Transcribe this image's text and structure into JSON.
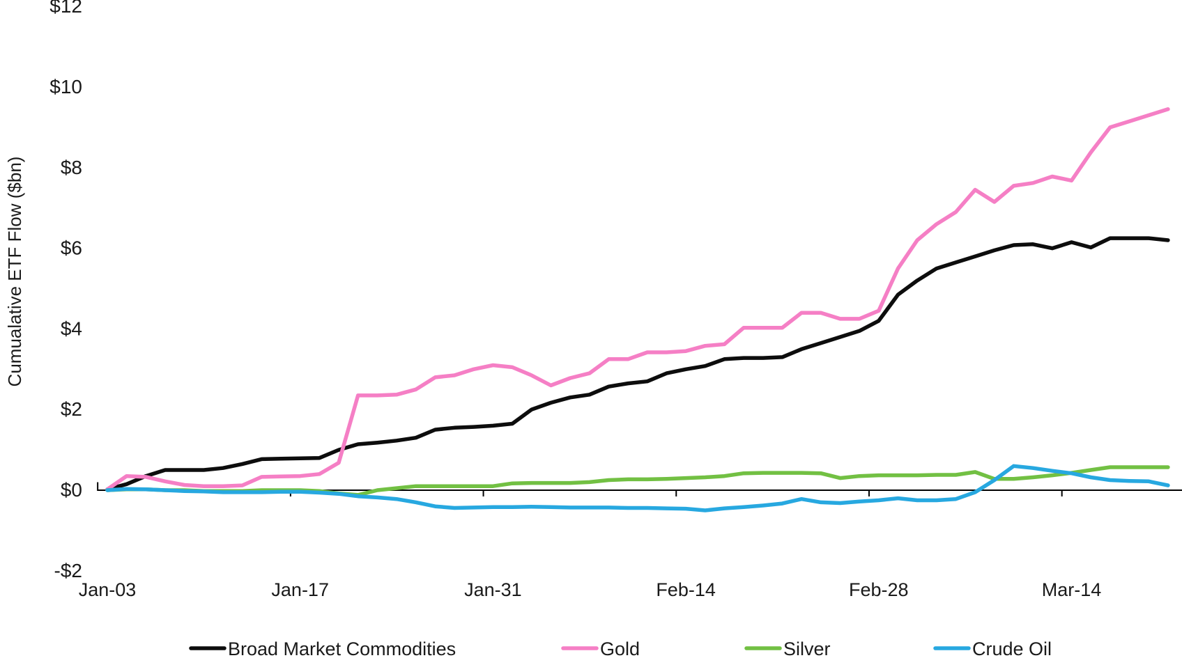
{
  "chart_data": {
    "type": "line",
    "title": "",
    "xlabel": "",
    "ylabel": "Cumualative ETF Flow ($bn)",
    "ylim": [
      -2,
      12
    ],
    "grid": false,
    "legend_position": "bottom",
    "text_color": "#1a1a1a",
    "axis_color": "#000000",
    "yticks": [
      {
        "label": "$12",
        "value": 12
      },
      {
        "label": "$10",
        "value": 10
      },
      {
        "label": "$8",
        "value": 8
      },
      {
        "label": "$6",
        "value": 6
      },
      {
        "label": "$4",
        "value": 4
      },
      {
        "label": "$2",
        "value": 2
      },
      {
        "label": "$0",
        "value": 0
      },
      {
        "label": "-$2",
        "value": -2
      }
    ],
    "xticks": [
      {
        "label": "Jan-03",
        "index": 0
      },
      {
        "label": "Jan-17",
        "index": 10
      },
      {
        "label": "Jan-31",
        "index": 20
      },
      {
        "label": "Feb-14",
        "index": 30
      },
      {
        "label": "Feb-28",
        "index": 40
      },
      {
        "label": "Mar-14",
        "index": 50
      }
    ],
    "x": [
      "Jan-03",
      "Jan-04",
      "Jan-05",
      "Jan-06",
      "Jan-09",
      "Jan-10",
      "Jan-11",
      "Jan-12",
      "Jan-13",
      "Jan-16",
      "Jan-17",
      "Jan-18",
      "Jan-19",
      "Jan-20",
      "Jan-23",
      "Jan-24",
      "Jan-25",
      "Jan-26",
      "Jan-27",
      "Jan-30",
      "Jan-31",
      "Feb-01",
      "Feb-02",
      "Feb-03",
      "Feb-06",
      "Feb-07",
      "Feb-08",
      "Feb-09",
      "Feb-10",
      "Feb-13",
      "Feb-14",
      "Feb-15",
      "Feb-16",
      "Feb-17",
      "Feb-20",
      "Feb-21",
      "Feb-22",
      "Feb-23",
      "Feb-24",
      "Feb-27",
      "Feb-28",
      "Mar-01",
      "Mar-02",
      "Mar-03",
      "Mar-06",
      "Mar-07",
      "Mar-08",
      "Mar-09",
      "Mar-10",
      "Mar-13",
      "Mar-14",
      "Mar-15",
      "Mar-16",
      "Mar-17",
      "Mar-20",
      "Mar-21"
    ],
    "series": [
      {
        "name": "Broad Market Commodities",
        "color": "#0d0d0d",
        "values": [
          0.02,
          0.15,
          0.35,
          0.5,
          0.5,
          0.5,
          0.55,
          0.65,
          0.77,
          0.78,
          0.79,
          0.8,
          1.0,
          1.14,
          1.18,
          1.23,
          1.3,
          1.5,
          1.55,
          1.57,
          1.6,
          1.65,
          2.0,
          2.17,
          2.3,
          2.37,
          2.57,
          2.65,
          2.7,
          2.9,
          3.0,
          3.08,
          3.25,
          3.28,
          3.28,
          3.3,
          3.5,
          3.65,
          3.8,
          3.95,
          4.2,
          4.85,
          5.2,
          5.5,
          5.65,
          5.8,
          5.95,
          6.08,
          6.1,
          6.0,
          6.15,
          6.02,
          6.25,
          6.25,
          6.25,
          6.2
        ]
      },
      {
        "name": "Gold",
        "color": "#f57fc5",
        "values": [
          0.02,
          0.35,
          0.33,
          0.22,
          0.13,
          0.1,
          0.1,
          0.12,
          0.33,
          0.34,
          0.35,
          0.4,
          0.68,
          2.35,
          2.35,
          2.37,
          2.5,
          2.8,
          2.85,
          3.0,
          3.1,
          3.05,
          2.85,
          2.6,
          2.78,
          2.9,
          3.25,
          3.25,
          3.42,
          3.42,
          3.45,
          3.58,
          3.62,
          4.03,
          4.03,
          4.03,
          4.4,
          4.4,
          4.25,
          4.25,
          4.45,
          5.5,
          6.2,
          6.6,
          6.9,
          7.45,
          7.15,
          7.55,
          7.62,
          7.78,
          7.68,
          8.38,
          9.0,
          9.15,
          9.3,
          9.45
        ]
      },
      {
        "name": "Silver",
        "color": "#72c043",
        "values": [
          0.0,
          0.02,
          0.02,
          0.0,
          0.0,
          -0.02,
          -0.02,
          -0.02,
          0.0,
          0.0,
          0.0,
          -0.02,
          -0.08,
          -0.12,
          0.0,
          0.05,
          0.1,
          0.1,
          0.1,
          0.1,
          0.1,
          0.17,
          0.18,
          0.18,
          0.18,
          0.2,
          0.25,
          0.27,
          0.27,
          0.28,
          0.3,
          0.32,
          0.35,
          0.42,
          0.43,
          0.43,
          0.43,
          0.42,
          0.3,
          0.35,
          0.37,
          0.37,
          0.37,
          0.38,
          0.38,
          0.45,
          0.28,
          0.28,
          0.32,
          0.37,
          0.43,
          0.5,
          0.57,
          0.57,
          0.57,
          0.57
        ]
      },
      {
        "name": "Crude Oil",
        "color": "#27a8e0",
        "values": [
          0.0,
          0.03,
          0.02,
          0.0,
          -0.02,
          -0.03,
          -0.05,
          -0.05,
          -0.05,
          -0.04,
          -0.04,
          -0.06,
          -0.09,
          -0.15,
          -0.18,
          -0.22,
          -0.3,
          -0.4,
          -0.44,
          -0.43,
          -0.42,
          -0.42,
          -0.41,
          -0.42,
          -0.43,
          -0.43,
          -0.43,
          -0.44,
          -0.44,
          -0.45,
          -0.46,
          -0.5,
          -0.45,
          -0.42,
          -0.38,
          -0.33,
          -0.22,
          -0.3,
          -0.32,
          -0.28,
          -0.25,
          -0.2,
          -0.25,
          -0.25,
          -0.22,
          -0.05,
          0.25,
          0.6,
          0.55,
          0.48,
          0.42,
          0.32,
          0.25,
          0.23,
          0.22,
          0.12
        ]
      }
    ]
  }
}
